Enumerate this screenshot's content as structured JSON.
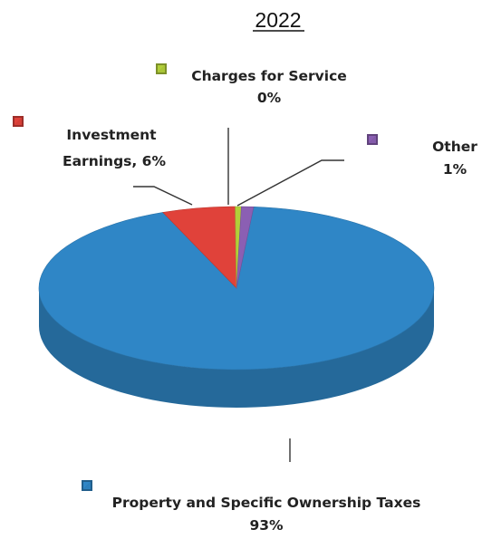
{
  "colors": {
    "property": "#2f86c6",
    "investment": "#e0423a",
    "charges": "#b2cf3a",
    "other": "#8b5fb3"
  },
  "chart_data": {
    "type": "pie",
    "title": "2022",
    "slices": [
      {
        "id": "property",
        "label_lines": [
          "Property and Specific Ownership Taxes",
          "93%"
        ],
        "value": 93
      },
      {
        "id": "investment",
        "label_lines": [
          "Investment",
          "Earnings, 6%"
        ],
        "value": 6
      },
      {
        "id": "charges",
        "label_lines": [
          "Charges for Service",
          "0%"
        ],
        "value": 0.5
      },
      {
        "id": "other",
        "label_lines": [
          "Other",
          "1%"
        ],
        "value": 1
      }
    ]
  }
}
